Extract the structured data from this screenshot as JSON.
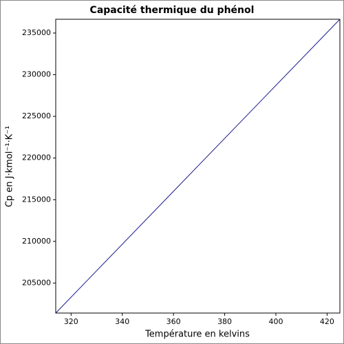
{
  "chart_data": {
    "type": "line",
    "title": "Capacité thermique du phénol",
    "x_label": "Température en kelvins",
    "y_label": "Cp en J·kmol⁻¹·K⁻¹",
    "x": [
      314,
      425
    ],
    "series": [
      {
        "name": "Cp",
        "color": "#1a1a8c",
        "values": [
          201400,
          236650
        ]
      }
    ],
    "xlim": [
      314,
      425
    ],
    "xticks": [
      320,
      340,
      360,
      380,
      400,
      420
    ],
    "ylim": [
      201400,
      236650
    ],
    "yticks": [
      205000,
      210000,
      215000,
      220000,
      225000,
      230000,
      235000
    ],
    "grid": false
  }
}
